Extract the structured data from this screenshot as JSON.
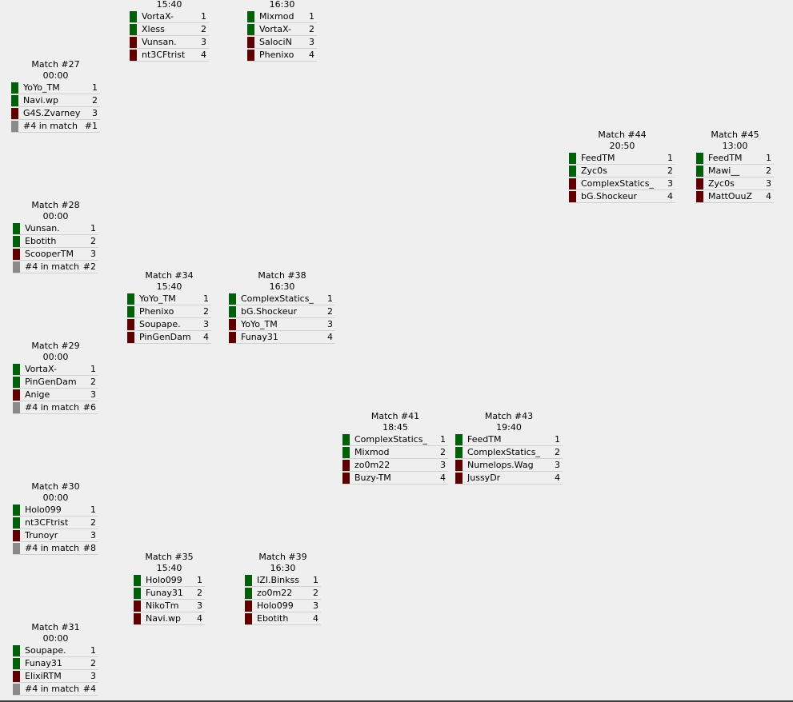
{
  "matches": {
    "m_top1": {
      "title": "",
      "time": "15:40",
      "players": [
        {
          "name": "VortaX-",
          "pos": "1",
          "status": "win"
        },
        {
          "name": "Xless",
          "pos": "2",
          "status": "win"
        },
        {
          "name": "Vunsan.",
          "pos": "3",
          "status": "lose"
        },
        {
          "name": "nt3CFtrist",
          "pos": "4",
          "status": "lose"
        }
      ]
    },
    "m_top2": {
      "title": "",
      "time": "16:30",
      "players": [
        {
          "name": "Mixmod",
          "pos": "1",
          "status": "win"
        },
        {
          "name": "VortaX-",
          "pos": "2",
          "status": "win"
        },
        {
          "name": "SalociN",
          "pos": "3",
          "status": "lose"
        },
        {
          "name": "Phenixo",
          "pos": "4",
          "status": "lose"
        }
      ]
    },
    "m27": {
      "title": "Match #27",
      "time": "00:00",
      "players": [
        {
          "name": "YoYo_TM",
          "pos": "1",
          "status": "win"
        },
        {
          "name": "Navi.wp",
          "pos": "2",
          "status": "win"
        },
        {
          "name": "G4S.Zvarney",
          "pos": "3",
          "status": "lose"
        },
        {
          "name": "#4 in match",
          "pos": "#1",
          "status": "tbd"
        }
      ]
    },
    "m28": {
      "title": "Match #28",
      "time": "00:00",
      "players": [
        {
          "name": "Vunsan.",
          "pos": "1",
          "status": "win"
        },
        {
          "name": "Ebotith",
          "pos": "2",
          "status": "win"
        },
        {
          "name": "ScooperTM",
          "pos": "3",
          "status": "lose"
        },
        {
          "name": "#4 in match",
          "pos": "#2",
          "status": "tbd"
        }
      ]
    },
    "m29": {
      "title": "Match #29",
      "time": "00:00",
      "players": [
        {
          "name": "VortaX-",
          "pos": "1",
          "status": "win"
        },
        {
          "name": "PinGenDam",
          "pos": "2",
          "status": "win"
        },
        {
          "name": "Anige",
          "pos": "3",
          "status": "lose"
        },
        {
          "name": "#4 in match",
          "pos": "#6",
          "status": "tbd"
        }
      ]
    },
    "m30": {
      "title": "Match #30",
      "time": "00:00",
      "players": [
        {
          "name": "Holo099",
          "pos": "1",
          "status": "win"
        },
        {
          "name": "nt3CFtrist",
          "pos": "2",
          "status": "win"
        },
        {
          "name": "Trunoyr",
          "pos": "3",
          "status": "lose"
        },
        {
          "name": "#4 in match",
          "pos": "#8",
          "status": "tbd"
        }
      ]
    },
    "m31": {
      "title": "Match #31",
      "time": "00:00",
      "players": [
        {
          "name": "Soupape.",
          "pos": "1",
          "status": "win"
        },
        {
          "name": "Funay31",
          "pos": "2",
          "status": "win"
        },
        {
          "name": "ElixiRTM",
          "pos": "3",
          "status": "lose"
        },
        {
          "name": "#4 in match",
          "pos": "#4",
          "status": "tbd"
        }
      ]
    },
    "m34": {
      "title": "Match #34",
      "time": "15:40",
      "players": [
        {
          "name": "YoYo_TM",
          "pos": "1",
          "status": "win"
        },
        {
          "name": "Phenixo",
          "pos": "2",
          "status": "win"
        },
        {
          "name": "Soupape.",
          "pos": "3",
          "status": "lose"
        },
        {
          "name": "PinGenDam",
          "pos": "4",
          "status": "lose"
        }
      ]
    },
    "m35": {
      "title": "Match #35",
      "time": "15:40",
      "players": [
        {
          "name": "Holo099",
          "pos": "1",
          "status": "win"
        },
        {
          "name": "Funay31",
          "pos": "2",
          "status": "win"
        },
        {
          "name": "NikoTm",
          "pos": "3",
          "status": "lose"
        },
        {
          "name": "Navi.wp",
          "pos": "4",
          "status": "lose"
        }
      ]
    },
    "m38": {
      "title": "Match #38",
      "time": "16:30",
      "players": [
        {
          "name": "ComplexStatics_",
          "pos": "1",
          "status": "win"
        },
        {
          "name": "bG.Shockeur",
          "pos": "2",
          "status": "win"
        },
        {
          "name": "YoYo_TM",
          "pos": "3",
          "status": "lose"
        },
        {
          "name": "Funay31",
          "pos": "4",
          "status": "lose"
        }
      ]
    },
    "m39": {
      "title": "Match #39",
      "time": "16:30",
      "players": [
        {
          "name": "IZI.Binkss",
          "pos": "1",
          "status": "win"
        },
        {
          "name": "zo0m22",
          "pos": "2",
          "status": "win"
        },
        {
          "name": "Holo099",
          "pos": "3",
          "status": "lose"
        },
        {
          "name": "Ebotith",
          "pos": "4",
          "status": "lose"
        }
      ]
    },
    "m41": {
      "title": "Match #41",
      "time": "18:45",
      "players": [
        {
          "name": "ComplexStatics_",
          "pos": "1",
          "status": "win"
        },
        {
          "name": "Mixmod",
          "pos": "2",
          "status": "win"
        },
        {
          "name": "zo0m22",
          "pos": "3",
          "status": "lose"
        },
        {
          "name": "Buzy-TM",
          "pos": "4",
          "status": "lose"
        }
      ]
    },
    "m43": {
      "title": "Match #43",
      "time": "19:40",
      "players": [
        {
          "name": "FeedTM",
          "pos": "1",
          "status": "win"
        },
        {
          "name": "ComplexStatics_",
          "pos": "2",
          "status": "win"
        },
        {
          "name": "Numelops.Wag",
          "pos": "3",
          "status": "lose"
        },
        {
          "name": "JussyDr",
          "pos": "4",
          "status": "lose"
        }
      ]
    },
    "m44": {
      "title": "Match #44",
      "time": "20:50",
      "players": [
        {
          "name": "FeedTM",
          "pos": "1",
          "status": "win"
        },
        {
          "name": "Zyc0s",
          "pos": "2",
          "status": "win"
        },
        {
          "name": "ComplexStatics_",
          "pos": "3",
          "status": "lose"
        },
        {
          "name": "bG.Shockeur",
          "pos": "4",
          "status": "lose"
        }
      ]
    },
    "m45": {
      "title": "Match #45",
      "time": "13:00",
      "players": [
        {
          "name": "FeedTM",
          "pos": "1",
          "status": "win"
        },
        {
          "name": "Mawi__",
          "pos": "2",
          "status": "win"
        },
        {
          "name": "Zyc0s",
          "pos": "3",
          "status": "lose"
        },
        {
          "name": "MattOuuZ",
          "pos": "4",
          "status": "lose"
        }
      ]
    }
  },
  "colors": {
    "win": "#00600a",
    "lose": "#5e0000",
    "tbd": "#8a8a8a",
    "background": "#efefef"
  }
}
